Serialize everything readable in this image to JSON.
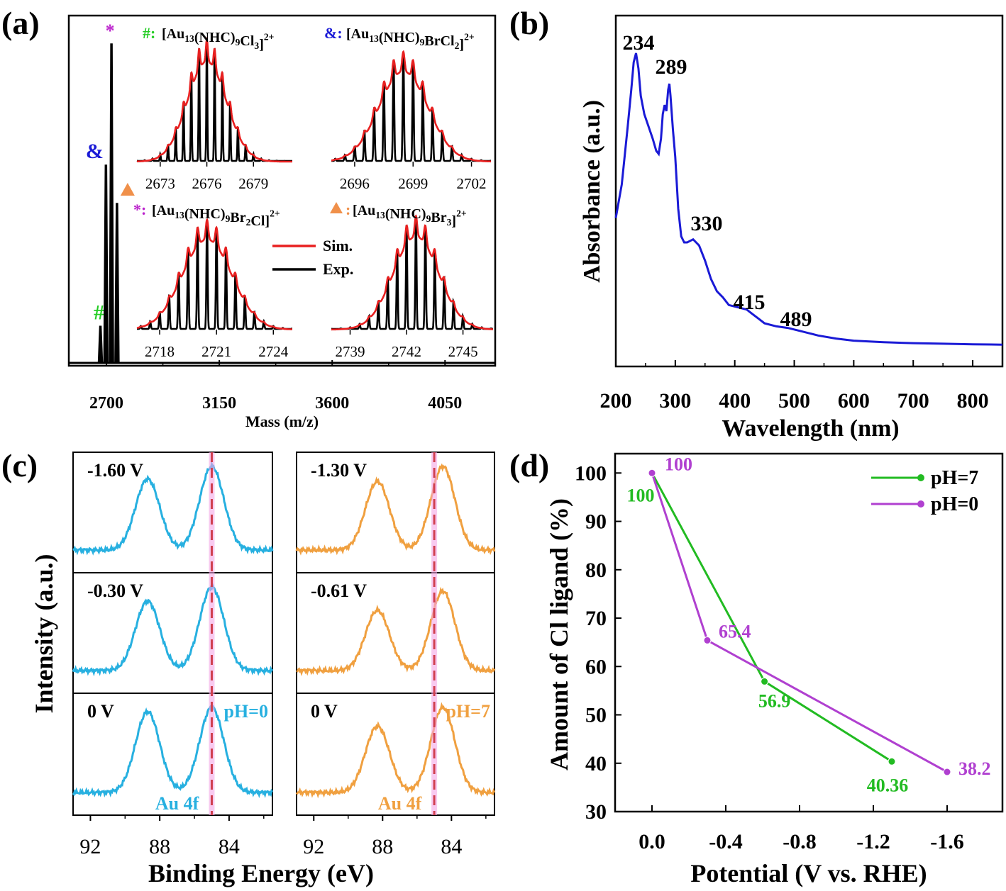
{
  "chart_data": [
    {
      "panel": "(a)",
      "type": "line",
      "xlabel": "Mass (m/z)",
      "ylabel": "",
      "xlim": [
        2550,
        4250
      ],
      "x_ticks": [
        2700,
        3150,
        3600,
        4050
      ],
      "main_peaks": [
        {
          "marker": "#",
          "x": 2676,
          "y": 0.115,
          "color": "#22cc22"
        },
        {
          "marker": "&",
          "x": 2698,
          "y": 0.62,
          "color": "#1a1ad6"
        },
        {
          "marker": "*",
          "x": 2720,
          "y": 1.0,
          "color": "#bb22cc"
        },
        {
          "marker": "▲",
          "x": 2742,
          "y": 0.5,
          "color": "#f0904a"
        }
      ],
      "legend": [
        {
          "label": "Sim.",
          "color": "#e82020"
        },
        {
          "label": "Exp.",
          "color": "#000000"
        }
      ],
      "insets": [
        {
          "marker": "#:",
          "marker_color": "#22cc22",
          "formula": "[Au13(NHC)9Cl3]2+",
          "formula_color": "#000000",
          "x_ticks": [
            "2673",
            "2676",
            "2679"
          ],
          "x_range": [
            2671.5,
            2681.5
          ],
          "center": 2676,
          "spacing": 0.5,
          "sigma": 1.25
        },
        {
          "marker": "&:",
          "marker_color": "#1a1ad6",
          "formula": "[Au13(NHC)9BrCl2]2+",
          "formula_color": "#000000",
          "x_ticks": [
            "2696",
            "2699",
            "2702"
          ],
          "x_range": [
            2694.8,
            2703.0
          ],
          "center": 2698.5,
          "spacing": 0.5,
          "sigma": 1.25
        },
        {
          "marker": "*:",
          "marker_color": "#bb22cc",
          "formula": "[Au13(NHC)9Br2Cl]2+",
          "formula_color": "#000000",
          "x_ticks": [
            "2718",
            "2721",
            "2724"
          ],
          "x_range": [
            2716.8,
            2725.0
          ],
          "center": 2720.5,
          "spacing": 0.5,
          "sigma": 1.3
        },
        {
          "marker": "▲:",
          "marker_color": "#f0904a",
          "formula": "[Au13(NHC)9Br3]2+",
          "formula_color": "#000000",
          "x_ticks": [
            "2739",
            "2742",
            "2745"
          ],
          "x_range": [
            2738.0,
            2746.6
          ],
          "center": 2742.5,
          "spacing": 0.5,
          "sigma": 1.2
        }
      ]
    },
    {
      "panel": "(b)",
      "type": "line",
      "xlabel": "Wavelength (nm)",
      "ylabel": "Absorbance (a.u.)",
      "xlim": [
        200,
        850
      ],
      "x_ticks": [
        200,
        300,
        400,
        500,
        600,
        700,
        800
      ],
      "color": "#1a1ad6",
      "series": {
        "x": [
          200,
          210,
          220,
          226,
          230,
          234,
          238,
          242,
          248,
          255,
          262,
          268,
          272,
          276,
          279,
          282,
          285,
          288,
          290,
          292,
          296,
          300,
          305,
          310,
          315,
          320,
          325,
          330,
          335,
          340,
          350,
          360,
          370,
          380,
          390,
          400,
          410,
          420,
          430,
          440,
          450,
          470,
          489,
          510,
          540,
          570,
          600,
          650,
          700,
          750,
          800,
          850
        ],
        "y": [
          0.44,
          0.55,
          0.74,
          0.86,
          0.95,
          0.98,
          0.93,
          0.84,
          0.78,
          0.74,
          0.7,
          0.66,
          0.65,
          0.7,
          0.78,
          0.81,
          0.79,
          0.86,
          0.88,
          0.84,
          0.73,
          0.64,
          0.47,
          0.38,
          0.36,
          0.36,
          0.365,
          0.37,
          0.36,
          0.35,
          0.3,
          0.24,
          0.2,
          0.18,
          0.155,
          0.15,
          0.145,
          0.14,
          0.125,
          0.11,
          0.095,
          0.085,
          0.08,
          0.07,
          0.055,
          0.045,
          0.038,
          0.033,
          0.03,
          0.028,
          0.026,
          0.025
        ]
      },
      "annotations": [
        {
          "text": "234",
          "x": 234
        },
        {
          "text": "289",
          "x": 289
        },
        {
          "text": "330",
          "x": 330
        },
        {
          "text": "415",
          "x": 415
        },
        {
          "text": "489",
          "x": 489
        }
      ]
    },
    {
      "panel": "(c)",
      "type": "line",
      "xlabel": "Binding Energy (eV)",
      "ylabel": "Intensity (a.u.)",
      "xlim": [
        93,
        81.5
      ],
      "x_ticks": [
        "92",
        "88",
        "84"
      ],
      "dashed_line_x": 85,
      "columns": [
        {
          "color": "#27b0e0",
          "condition": "pH=0",
          "element_label": "Au 4f",
          "potentials": [
            "-1.60 V",
            "-0.30 V",
            "0 V"
          ]
        },
        {
          "color": "#f0a040",
          "condition": "pH=7",
          "element_label": "Au 4f",
          "potentials": [
            "-1.30 V",
            "-0.61 V",
            "0 V"
          ]
        }
      ]
    },
    {
      "panel": "(d)",
      "type": "line",
      "xlabel": "Potential (V vs. RHE)",
      "ylabel": "Amount of Cl ligand (%)",
      "xlim": [
        0.2,
        -1.9
      ],
      "ylim": [
        30,
        104
      ],
      "x_ticks": [
        "0.0",
        "-0.4",
        "-0.8",
        "-1.2",
        "-1.6"
      ],
      "y_ticks": [
        30,
        40,
        50,
        60,
        70,
        80,
        90,
        100
      ],
      "legend_position": "top-right",
      "series": [
        {
          "name": "pH=7",
          "color": "#22bb22",
          "x": [
            0,
            -0.61,
            -1.3
          ],
          "y": [
            100,
            56.9,
            40.36
          ],
          "labels": [
            "100",
            "56.9",
            "40.36"
          ]
        },
        {
          "name": "pH=0",
          "color": "#b040d0",
          "x": [
            0,
            -0.3,
            -1.6
          ],
          "y": [
            100,
            65.4,
            38.2
          ],
          "labels": [
            "100",
            "65.4",
            "38.2"
          ]
        }
      ]
    }
  ]
}
